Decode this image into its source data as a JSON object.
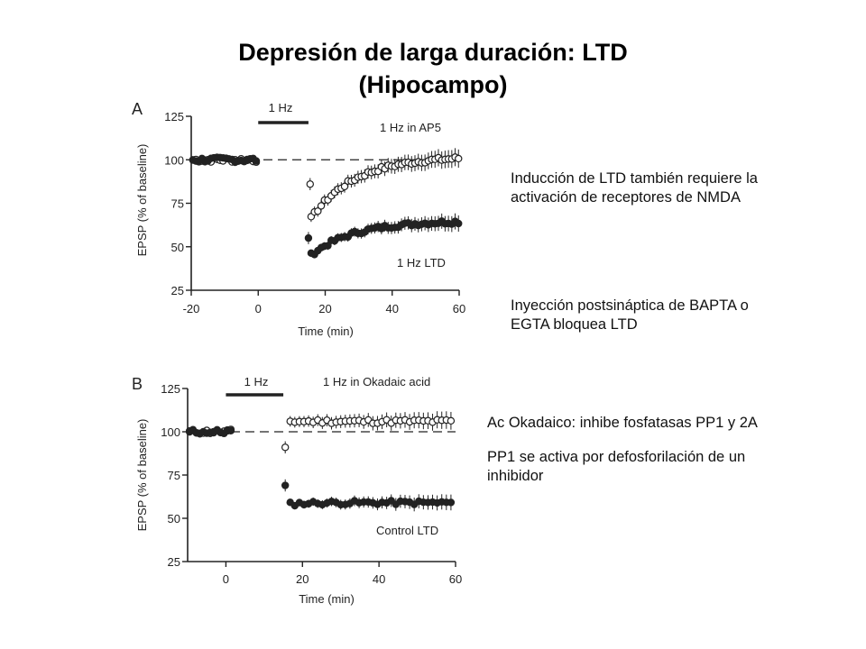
{
  "slide": {
    "title_line1": "Depresión de larga duración: LTD",
    "title_line2": "(Hipocampo)",
    "notes": [
      {
        "lines": [
          "Inducción de LTD también requiere la",
          "activación de receptores de NMDA"
        ]
      },
      {
        "lines": [
          "Inyección postsináptica de BAPTA o",
          "EGTA bloquea LTD"
        ]
      },
      {
        "lines": [
          "Ac Okadaico: inhibe fosfatasas PP1 y 2A"
        ]
      },
      {
        "lines": [
          "PP1 se activa por defosforilación de un",
          "inhibidor"
        ]
      }
    ]
  },
  "colors": {
    "ink": "#222222",
    "text": "#111111",
    "background": "#ffffff"
  },
  "chart_data": [
    {
      "type": "scatter",
      "panel_label": "A",
      "xlabel": "Time (min)",
      "ylabel": "EPSP (% of baseline)",
      "xlim": [
        -20,
        60
      ],
      "ylim": [
        25,
        125
      ],
      "xticks": [
        -20,
        0,
        20,
        40,
        60
      ],
      "yticks": [
        25,
        50,
        75,
        100,
        125
      ],
      "baseline": 100,
      "stimulus": {
        "label": "1 Hz",
        "x_start": 0,
        "x_end": 15
      },
      "series": [
        {
          "name": "1 Hz in AP5",
          "marker": "open-circle",
          "baseline_x": [
            -20,
            0
          ],
          "post_x": [
            15,
            60
          ],
          "start_value": 64,
          "end_value": 102,
          "outliers": [
            {
              "x": 15.5,
              "y": 86
            }
          ]
        },
        {
          "name": "1 Hz LTD",
          "marker": "filled-circle",
          "baseline_x": [
            -20,
            0
          ],
          "post_x": [
            15,
            60
          ],
          "start_value": 44,
          "end_value": 65,
          "outliers": [
            {
              "x": 15,
              "y": 55
            }
          ]
        }
      ]
    },
    {
      "type": "scatter",
      "panel_label": "B",
      "xlabel": "Time (min)",
      "ylabel": "EPSP (% of baseline)",
      "xlim": [
        -10,
        60
      ],
      "ylim": [
        25,
        125
      ],
      "xticks": [
        0,
        20,
        40,
        60
      ],
      "yticks": [
        25,
        50,
        75,
        100,
        125
      ],
      "baseline": 100,
      "stimulus": {
        "label": "1 Hz",
        "x_start": 0,
        "x_end": 15
      },
      "series": [
        {
          "name": "1 Hz in Okadaic acid",
          "marker": "open-circle",
          "baseline_x": [
            -10,
            2
          ],
          "post_x": [
            16,
            60
          ],
          "start_value": 106,
          "end_value": 106,
          "outliers": [
            {
              "x": 15.5,
              "y": 91
            }
          ]
        },
        {
          "name": "Control LTD",
          "marker": "filled-circle",
          "baseline_x": [
            -10,
            2
          ],
          "post_x": [
            16,
            60
          ],
          "start_value": 58,
          "end_value": 59,
          "outliers": [
            {
              "x": 15.5,
              "y": 69
            }
          ]
        }
      ]
    }
  ]
}
